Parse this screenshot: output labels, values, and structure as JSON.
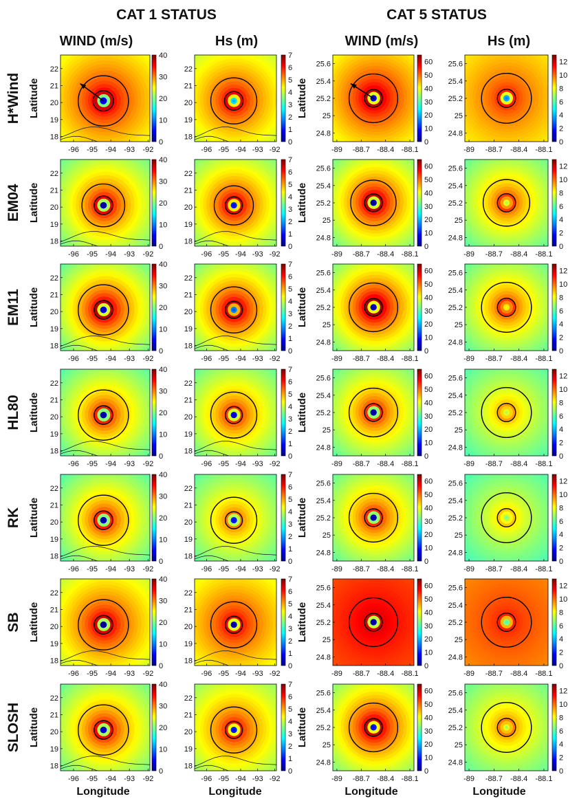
{
  "figure": {
    "group_titles": [
      "CAT 1 STATUS",
      "CAT 5  STATUS"
    ],
    "column_titles": [
      "WIND (m/s)",
      "Hs (m)",
      "WIND (m/s)",
      "Hs (m)"
    ],
    "row_titles": [
      "H*Wind",
      "EM04",
      "EM11",
      "HL80",
      "RK",
      "SB",
      "SLOSH"
    ],
    "ylabel": "Latitude",
    "xlabel": "Longitude"
  },
  "chart_data": {
    "type": "heatmap",
    "colormap": [
      "#00008f",
      "#0000ff",
      "#0080ff",
      "#00ffff",
      "#80ff80",
      "#ffff00",
      "#ff8000",
      "#ff0000",
      "#800000"
    ],
    "columns": [
      {
        "variable": "WIND (m/s)",
        "status": "CAT 1",
        "xticks": [
          "-96",
          "-95",
          "-94",
          "-93",
          "-92"
        ],
        "xlim": [
          -96.7,
          -91.9
        ],
        "yticks": [
          "22",
          "21",
          "20",
          "19",
          "18"
        ],
        "ylim": [
          17.7,
          22.8
        ],
        "center": [
          -94.4,
          20.1
        ],
        "colorbar": {
          "min": 0,
          "max": 40,
          "ticks": [
            "40",
            "30",
            "20",
            "10",
            "0"
          ]
        },
        "coastline": true
      },
      {
        "variable": "Hs (m)",
        "status": "CAT 1",
        "xticks": [
          "-96",
          "-95",
          "-94",
          "-93",
          "-92"
        ],
        "xlim": [
          -96.7,
          -91.9
        ],
        "yticks": [
          "22",
          "21",
          "20",
          "19",
          "18"
        ],
        "ylim": [
          17.7,
          22.8
        ],
        "center": [
          -94.4,
          20.1
        ],
        "colorbar": {
          "min": 0,
          "max": 7,
          "ticks": [
            "7",
            "6",
            "5",
            "4",
            "3",
            "2",
            "1",
            "0"
          ]
        },
        "coastline": true
      },
      {
        "variable": "WIND (m/s)",
        "status": "CAT 5",
        "xticks": [
          "-89",
          "-88.7",
          "-88.4",
          "-88.1"
        ],
        "xlim": [
          -89.05,
          -88.05
        ],
        "yticks": [
          "25.6",
          "25.4",
          "25.2",
          "25",
          "24.8"
        ],
        "ylim": [
          24.7,
          25.7
        ],
        "center": [
          -88.55,
          25.2
        ],
        "colorbar": {
          "min": 0,
          "max": 65,
          "ticks": [
            "60",
            "50",
            "40",
            "30",
            "20",
            "10",
            "0"
          ]
        },
        "coastline": false
      },
      {
        "variable": "Hs (m)",
        "status": "CAT 5",
        "xticks": [
          "-89",
          "-88.7",
          "-88.4",
          "-88.1"
        ],
        "xlim": [
          -89.05,
          -88.05
        ],
        "yticks": [
          "25.6",
          "25.4",
          "25.2",
          "25",
          "24.8"
        ],
        "ylim": [
          24.7,
          25.7
        ],
        "center": [
          -88.55,
          25.2
        ],
        "colorbar": {
          "min": 0,
          "max": 13,
          "ticks": [
            "12",
            "10",
            "8",
            "6",
            "4",
            "2",
            "0"
          ]
        },
        "coastline": false
      }
    ],
    "rows": [
      {
        "model": "H*Wind",
        "track_arrow": true,
        "peak_fraction": [
          0.92,
          0.9,
          0.95,
          0.85
        ],
        "eye_fraction": [
          0.12,
          0.35,
          0.1,
          0.3
        ],
        "background_fraction": [
          0.55,
          0.5,
          0.55,
          0.6
        ],
        "radii": [
          {
            "inner": 0.55,
            "outer": 1.35
          },
          {
            "inner": 0.55,
            "outer": 1.35
          },
          {
            "inner": 0.11,
            "outer": 0.3
          },
          {
            "inner": 0.11,
            "outer": 0.3
          }
        ]
      },
      {
        "model": "EM04",
        "track_arrow": false,
        "peak_fraction": [
          0.9,
          0.92,
          0.95,
          0.82
        ],
        "eye_fraction": [
          0.05,
          0.15,
          0.05,
          0.6
        ],
        "background_fraction": [
          0.4,
          0.42,
          0.4,
          0.4
        ],
        "radii": [
          {
            "inner": 0.5,
            "outer": 1.15
          },
          {
            "inner": 0.5,
            "outer": 1.15
          },
          {
            "inner": 0.11,
            "outer": 0.28
          },
          {
            "inner": 0.11,
            "outer": 0.28
          }
        ]
      },
      {
        "model": "EM11",
        "track_arrow": false,
        "peak_fraction": [
          0.95,
          0.95,
          0.98,
          0.82
        ],
        "eye_fraction": [
          0.1,
          0.25,
          0.08,
          0.65
        ],
        "background_fraction": [
          0.38,
          0.4,
          0.4,
          0.4
        ],
        "radii": [
          {
            "inner": 0.5,
            "outer": 1.35
          },
          {
            "inner": 0.5,
            "outer": 1.35
          },
          {
            "inner": 0.11,
            "outer": 0.3
          },
          {
            "inner": 0.11,
            "outer": 0.3
          }
        ]
      },
      {
        "model": "HL80",
        "track_arrow": false,
        "peak_fraction": [
          0.85,
          0.85,
          0.85,
          0.72
        ],
        "eye_fraction": [
          0.05,
          0.1,
          0.05,
          0.6
        ],
        "background_fraction": [
          0.38,
          0.4,
          0.4,
          0.4
        ],
        "radii": [
          {
            "inner": 0.5,
            "outer": 1.35
          },
          {
            "inner": 0.5,
            "outer": 1.35
          },
          {
            "inner": 0.11,
            "outer": 0.3
          },
          {
            "inner": 0.11,
            "outer": 0.3
          }
        ]
      },
      {
        "model": "RK",
        "track_arrow": false,
        "peak_fraction": [
          0.85,
          0.78,
          0.85,
          0.68
        ],
        "eye_fraction": [
          0.05,
          0.15,
          0.05,
          0.55
        ],
        "background_fraction": [
          0.38,
          0.4,
          0.4,
          0.4
        ],
        "radii": [
          {
            "inner": 0.5,
            "outer": 1.35
          },
          {
            "inner": 0.5,
            "outer": 1.35
          },
          {
            "inner": 0.11,
            "outer": 0.3
          },
          {
            "inner": 0.11,
            "outer": 0.3
          }
        ]
      },
      {
        "model": "SB",
        "track_arrow": false,
        "peak_fraction": [
          0.92,
          0.9,
          0.92,
          0.85
        ],
        "eye_fraction": [
          0.02,
          0.05,
          0.05,
          0.5
        ],
        "background_fraction": [
          0.5,
          0.55,
          0.78,
          0.72
        ],
        "radii": [
          {
            "inner": 0.5,
            "outer": 1.35
          },
          {
            "inner": 0.5,
            "outer": 1.35
          },
          {
            "inner": 0.11,
            "outer": 0.3
          },
          {
            "inner": 0.11,
            "outer": 0.3
          }
        ]
      },
      {
        "model": "SLOSH",
        "track_arrow": false,
        "peak_fraction": [
          0.88,
          0.88,
          0.95,
          0.75
        ],
        "eye_fraction": [
          0.08,
          0.15,
          0.15,
          0.6
        ],
        "background_fraction": [
          0.4,
          0.45,
          0.42,
          0.42
        ],
        "radii": [
          {
            "inner": 0.5,
            "outer": 1.35
          },
          {
            "inner": 0.5,
            "outer": 1.35
          },
          {
            "inner": 0.11,
            "outer": 0.3
          },
          {
            "inner": 0.11,
            "outer": 0.3
          }
        ]
      }
    ]
  }
}
